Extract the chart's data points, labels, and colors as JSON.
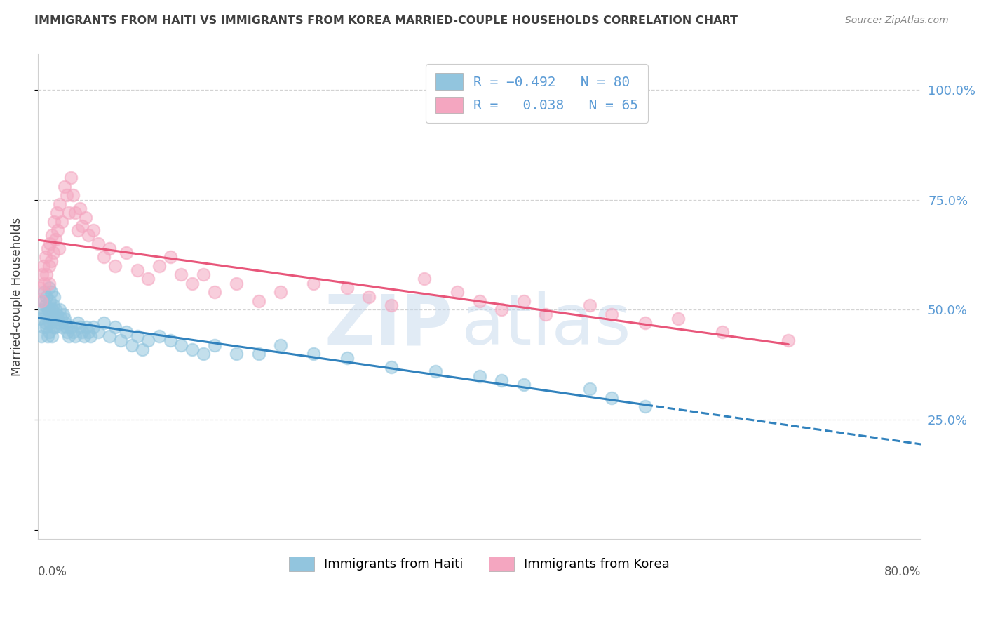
{
  "title": "IMMIGRANTS FROM HAITI VS IMMIGRANTS FROM KOREA MARRIED-COUPLE HOUSEHOLDS CORRELATION CHART",
  "source": "Source: ZipAtlas.com",
  "ylabel": "Married-couple Households",
  "xlim": [
    0.0,
    0.8
  ],
  "ylim": [
    -0.02,
    1.08
  ],
  "haiti_R": -0.492,
  "haiti_N": 80,
  "korea_R": 0.038,
  "korea_N": 65,
  "haiti_color": "#92c5de",
  "korea_color": "#f4a6c0",
  "haiti_line_color": "#3182bd",
  "korea_line_color": "#e8567a",
  "haiti_scatter_x": [
    0.002,
    0.003,
    0.004,
    0.005,
    0.005,
    0.006,
    0.006,
    0.007,
    0.007,
    0.008,
    0.008,
    0.009,
    0.009,
    0.01,
    0.01,
    0.01,
    0.011,
    0.011,
    0.012,
    0.012,
    0.013,
    0.013,
    0.014,
    0.014,
    0.015,
    0.015,
    0.016,
    0.016,
    0.017,
    0.018,
    0.019,
    0.02,
    0.021,
    0.022,
    0.023,
    0.024,
    0.025,
    0.026,
    0.027,
    0.028,
    0.03,
    0.032,
    0.034,
    0.036,
    0.038,
    0.04,
    0.042,
    0.044,
    0.046,
    0.048,
    0.05,
    0.055,
    0.06,
    0.065,
    0.07,
    0.075,
    0.08,
    0.085,
    0.09,
    0.095,
    0.1,
    0.11,
    0.12,
    0.13,
    0.14,
    0.15,
    0.16,
    0.18,
    0.2,
    0.22,
    0.25,
    0.28,
    0.32,
    0.36,
    0.4,
    0.42,
    0.44,
    0.5,
    0.52,
    0.55
  ],
  "haiti_scatter_y": [
    0.48,
    0.44,
    0.5,
    0.52,
    0.46,
    0.54,
    0.49,
    0.51,
    0.47,
    0.53,
    0.46,
    0.5,
    0.44,
    0.55,
    0.5,
    0.45,
    0.52,
    0.47,
    0.54,
    0.48,
    0.5,
    0.44,
    0.51,
    0.46,
    0.53,
    0.48,
    0.5,
    0.46,
    0.49,
    0.48,
    0.47,
    0.5,
    0.48,
    0.46,
    0.49,
    0.48,
    0.47,
    0.46,
    0.45,
    0.44,
    0.46,
    0.45,
    0.44,
    0.47,
    0.46,
    0.45,
    0.44,
    0.46,
    0.45,
    0.44,
    0.46,
    0.45,
    0.47,
    0.44,
    0.46,
    0.43,
    0.45,
    0.42,
    0.44,
    0.41,
    0.43,
    0.44,
    0.43,
    0.42,
    0.41,
    0.4,
    0.42,
    0.4,
    0.4,
    0.42,
    0.4,
    0.39,
    0.37,
    0.36,
    0.35,
    0.34,
    0.33,
    0.32,
    0.3,
    0.28
  ],
  "korea_scatter_x": [
    0.002,
    0.003,
    0.004,
    0.005,
    0.006,
    0.007,
    0.008,
    0.009,
    0.01,
    0.01,
    0.011,
    0.012,
    0.013,
    0.014,
    0.015,
    0.016,
    0.017,
    0.018,
    0.019,
    0.02,
    0.022,
    0.024,
    0.026,
    0.028,
    0.03,
    0.032,
    0.034,
    0.036,
    0.038,
    0.04,
    0.043,
    0.046,
    0.05,
    0.055,
    0.06,
    0.065,
    0.07,
    0.08,
    0.09,
    0.1,
    0.11,
    0.12,
    0.13,
    0.14,
    0.15,
    0.16,
    0.18,
    0.2,
    0.22,
    0.25,
    0.28,
    0.3,
    0.32,
    0.35,
    0.38,
    0.4,
    0.42,
    0.44,
    0.46,
    0.5,
    0.52,
    0.55,
    0.58,
    0.62,
    0.68
  ],
  "korea_scatter_y": [
    0.55,
    0.52,
    0.58,
    0.6,
    0.56,
    0.62,
    0.58,
    0.64,
    0.6,
    0.56,
    0.65,
    0.61,
    0.67,
    0.63,
    0.7,
    0.66,
    0.72,
    0.68,
    0.64,
    0.74,
    0.7,
    0.78,
    0.76,
    0.72,
    0.8,
    0.76,
    0.72,
    0.68,
    0.73,
    0.69,
    0.71,
    0.67,
    0.68,
    0.65,
    0.62,
    0.64,
    0.6,
    0.63,
    0.59,
    0.57,
    0.6,
    0.62,
    0.58,
    0.56,
    0.58,
    0.54,
    0.56,
    0.52,
    0.54,
    0.56,
    0.55,
    0.53,
    0.51,
    0.57,
    0.54,
    0.52,
    0.5,
    0.52,
    0.49,
    0.51,
    0.49,
    0.47,
    0.48,
    0.45,
    0.43
  ],
  "watermark_zip": "ZIP",
  "watermark_atlas": "atlas",
  "background_color": "#ffffff",
  "grid_color": "#c8c8c8",
  "right_axis_color": "#5b9bd5",
  "legend_text_color": "#5b9bd5",
  "title_color": "#404040",
  "source_color": "#888888",
  "ylabel_color": "#404040"
}
